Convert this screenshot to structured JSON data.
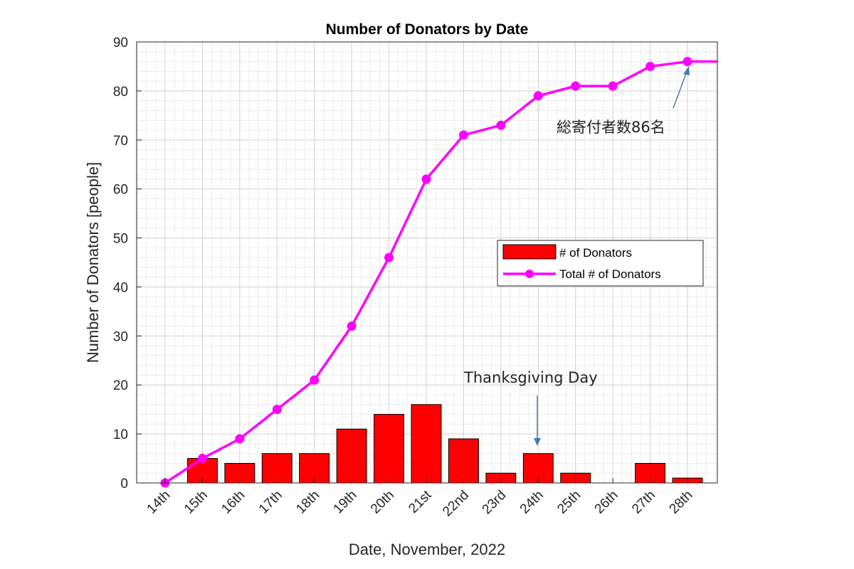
{
  "chart_data": {
    "type": "bar",
    "title": "Number of Donators by Date",
    "xlabel": "Date, November, 2022",
    "ylabel": "Number of Donators [people]",
    "ylim": [
      0,
      90
    ],
    "yticks": [
      0,
      10,
      20,
      30,
      40,
      50,
      60,
      70,
      80,
      90
    ],
    "grid": true,
    "categories": [
      "14th",
      "15th",
      "16th",
      "17th",
      "18th",
      "19th",
      "20th",
      "21st",
      "22nd",
      "23rd",
      "24th",
      "25th",
      "26th",
      "27th",
      "28th"
    ],
    "series": [
      {
        "name": "# of Donators",
        "type": "bar",
        "color": "#ff0000",
        "values": [
          0,
          5,
          4,
          6,
          6,
          11,
          14,
          16,
          9,
          2,
          6,
          2,
          0,
          4,
          1
        ]
      },
      {
        "name": "Total # of Donators",
        "type": "line",
        "color": "#ff00ff",
        "values": [
          0,
          5,
          9,
          15,
          21,
          32,
          46,
          62,
          71,
          73,
          79,
          81,
          81,
          85,
          86
        ]
      }
    ],
    "legend_position": "center-right",
    "annotations": [
      {
        "text": "総寄付者数86名",
        "category": "28th",
        "value": 86
      },
      {
        "text": "Thanksgiving Day",
        "category": "24th",
        "value": 6
      }
    ]
  }
}
